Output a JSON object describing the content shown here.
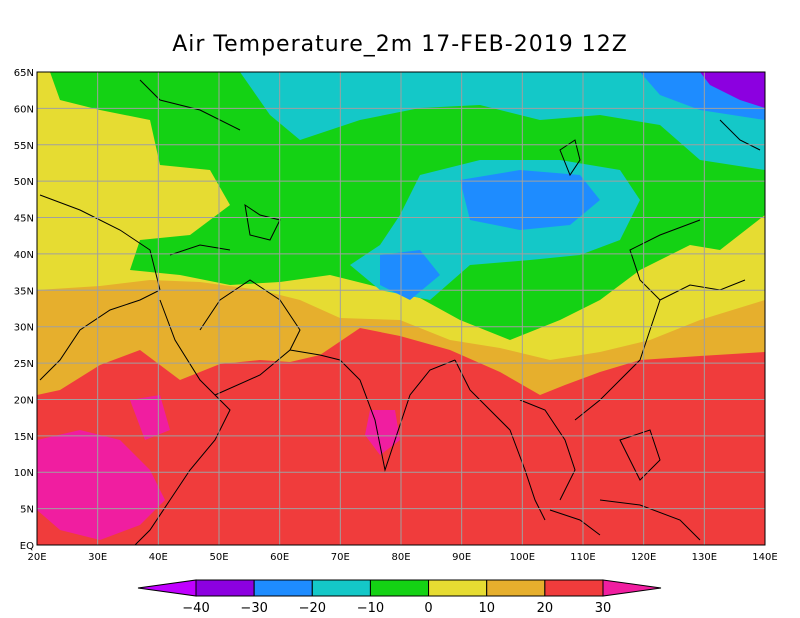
{
  "title": "Air Temperature_2m 17-FEB-2019 12Z",
  "lat_labels": [
    "65N",
    "60N",
    "55N",
    "50N",
    "45N",
    "40N",
    "35N",
    "30N",
    "25N",
    "20N",
    "15N",
    "10N",
    "5N",
    "EQ"
  ],
  "lon_labels": [
    "20E",
    "30E",
    "40E",
    "50E",
    "60E",
    "70E",
    "80E",
    "90E",
    "100E",
    "110E",
    "120E",
    "130E",
    "140E"
  ],
  "map_extent": {
    "lon": [
      20,
      140
    ],
    "lat": [
      0,
      65
    ]
  },
  "grid": true,
  "colorbar": {
    "labels": [
      "-40",
      "-30",
      "-20",
      "-10",
      "0",
      "10",
      "20",
      "30"
    ],
    "bins": [
      {
        "range": "< -40",
        "color": "#c000ff"
      },
      {
        "range": "-40 to -30",
        "color": "#8c00e0"
      },
      {
        "range": "-30 to -20",
        "color": "#1e8cff"
      },
      {
        "range": "-20 to -10",
        "color": "#14c8c8"
      },
      {
        "range": "-10 to 0",
        "color": "#14d214"
      },
      {
        "range": "0 to 10",
        "color": "#e6dc32"
      },
      {
        "range": "10 to 20",
        "color": "#e6af2d"
      },
      {
        "range": "20 to 30",
        "color": "#f03c3c"
      },
      {
        "range": "> 30",
        "color": "#f01ea0"
      }
    ]
  }
}
